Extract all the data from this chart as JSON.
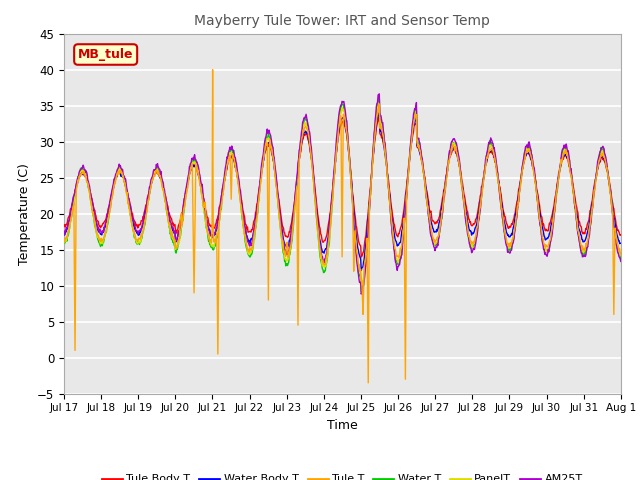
{
  "title": "Mayberry Tule Tower: IRT and Sensor Temp",
  "xlabel": "Time",
  "ylabel": "Temperature (C)",
  "ylim": [
    -5,
    45
  ],
  "yticks": [
    -5,
    0,
    5,
    10,
    15,
    20,
    25,
    30,
    35,
    40,
    45
  ],
  "xtick_labels": [
    "Jul 17",
    "Jul 18",
    "Jul 19",
    "Jul 20",
    "Jul 21",
    "Jul 22",
    "Jul 23",
    "Jul 24",
    "Jul 25",
    "Jul 26",
    "Jul 27",
    "Jul 28",
    "Jul 29",
    "Jul 30",
    "Jul 31",
    "Aug 1"
  ],
  "legend_labels": [
    "Tule Body T",
    "Water Body T",
    "Tule T",
    "Water T",
    "PanelT",
    "AM25T"
  ],
  "legend_colors": [
    "#ff0000",
    "#0000ff",
    "#ffa500",
    "#00cc00",
    "#dddd00",
    "#aa00cc"
  ],
  "line_colors": [
    "#ff0000",
    "#0000ff",
    "#ffa500",
    "#00cc00",
    "#dddd00",
    "#aa00cc"
  ],
  "watermark_text": "MB_tule",
  "watermark_color": "#cc0000",
  "watermark_bg": "#ffffcc",
  "plot_bg_color": "#e8e8e8",
  "fig_bg_color": "#ffffff",
  "n_points": 960
}
